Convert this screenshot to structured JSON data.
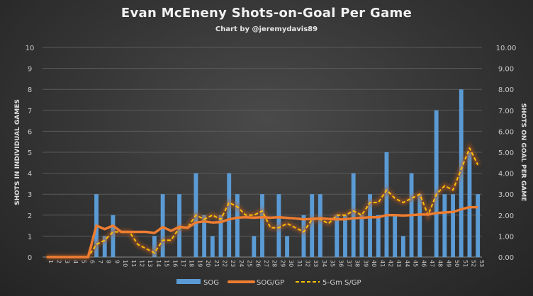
{
  "chart_data": {
    "type": "bar",
    "title": "Evan McEneny Shots-on-Goal Per Game",
    "subtitle": "Chart  by  @jeremydavis89",
    "ylabel_left": "SHOTS IN INDIVIDUAL GAMES",
    "ylabel_right": "SHOTS ON GOAL PER GAME",
    "ylim_left": [
      0,
      10
    ],
    "ylim_right": [
      0,
      10
    ],
    "yticks_left": [
      "0",
      "1",
      "2",
      "3",
      "4",
      "5",
      "6",
      "7",
      "8",
      "9",
      "10"
    ],
    "yticks_right": [
      "0.00",
      "1.00",
      "2.00",
      "3.00",
      "4.00",
      "5.00",
      "6.00",
      "7.00",
      "8.00",
      "9.00",
      "10.00"
    ],
    "categories": [
      "1",
      "2",
      "3",
      "4",
      "5",
      "6",
      "7",
      "8",
      "9",
      "10",
      "11",
      "12",
      "13",
      "14",
      "15",
      "16",
      "17",
      "18",
      "19",
      "20",
      "21",
      "22",
      "23",
      "24",
      "25",
      "26",
      "27",
      "28",
      "29",
      "30",
      "31",
      "32",
      "33",
      "34",
      "35",
      "36",
      "37",
      "38",
      "39",
      "40",
      "41",
      "42",
      "43",
      "44",
      "45",
      "46",
      "47",
      "48",
      "49",
      "50",
      "51",
      "52",
      "53"
    ],
    "series": [
      {
        "name": "SOG",
        "type": "bar",
        "color": "#5b9bd5",
        "values": [
          0,
          0,
          0,
          0,
          0,
          0,
          3,
          1,
          2,
          0,
          0,
          0,
          0,
          1,
          3,
          0,
          3,
          0,
          4,
          2,
          1,
          2,
          4,
          3,
          0,
          1,
          3,
          0,
          3,
          1,
          0,
          2,
          3,
          3,
          0,
          2,
          2,
          4,
          2,
          3,
          2,
          5,
          2,
          1,
          4,
          3,
          0,
          7,
          3,
          3,
          8,
          5,
          3
        ]
      },
      {
        "name": "SOG/GP",
        "type": "line",
        "color": "#ed7d31",
        "values": [
          0,
          0,
          0,
          0,
          0,
          0,
          1.5,
          1.33,
          1.5,
          1.2,
          1.2,
          1.2,
          1.2,
          1.15,
          1.43,
          1.25,
          1.44,
          1.4,
          1.65,
          1.7,
          1.65,
          1.67,
          1.8,
          1.88,
          1.9,
          1.88,
          1.9,
          1.88,
          1.9,
          1.87,
          1.84,
          1.8,
          1.82,
          1.85,
          1.82,
          1.8,
          1.8,
          1.85,
          1.87,
          1.9,
          1.9,
          2.0,
          2.0,
          1.98,
          2.0,
          2.03,
          2.03,
          2.1,
          2.13,
          2.15,
          2.28,
          2.38,
          2.38
        ]
      },
      {
        "name": "5-Gm S/GP",
        "type": "line-dashed",
        "color": "#ffc000",
        "values": [
          0,
          0,
          0,
          0,
          0,
          0,
          0.6,
          0.8,
          1.2,
          1.2,
          1.2,
          0.6,
          0.4,
          0.2,
          0.8,
          0.8,
          1.4,
          1.4,
          2.0,
          1.8,
          2.0,
          1.8,
          2.6,
          2.4,
          2.0,
          2.0,
          2.2,
          1.4,
          1.4,
          1.6,
          1.4,
          1.2,
          1.8,
          1.8,
          1.6,
          2.0,
          2.0,
          2.2,
          2.0,
          2.6,
          2.6,
          3.2,
          2.8,
          2.6,
          2.8,
          3.0,
          2.0,
          3.0,
          3.4,
          3.2,
          4.2,
          5.2,
          4.4
        ]
      }
    ],
    "grid": true,
    "legend": "bottom"
  }
}
